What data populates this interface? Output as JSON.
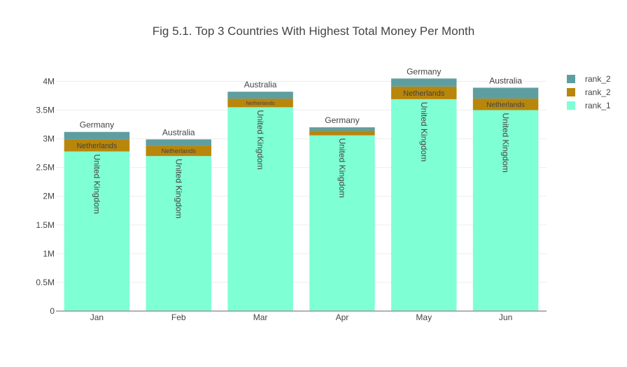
{
  "chart_data": {
    "type": "bar",
    "stacked": true,
    "title": "Fig 5.1. Top 3 Countries With Highest Total Money Per Month",
    "xlabel": "",
    "ylabel": "",
    "categories": [
      "Jan",
      "Feb",
      "Mar",
      "Apr",
      "May",
      "Jun"
    ],
    "ylim": [
      0,
      4200000
    ],
    "yticks": [
      0,
      500000,
      1000000,
      1500000,
      2000000,
      2500000,
      3000000,
      3500000,
      4000000
    ],
    "ytick_labels": [
      "0",
      "0.5M",
      "1M",
      "1.5M",
      "2M",
      "2.5M",
      "3M",
      "3.5M",
      "4M"
    ],
    "grid": true,
    "legend_position": "top-right",
    "series": [
      {
        "name": "rank_1",
        "color": "#7fffd4",
        "values": [
          2780000,
          2700000,
          3550000,
          3060000,
          3690000,
          3500000
        ],
        "labels": [
          "United Kingdom",
          "United Kingdom",
          "United Kingdom",
          "United Kingdom",
          "United Kingdom",
          "United Kingdom"
        ],
        "label_position": "inside"
      },
      {
        "name": "rank_2",
        "color": "#b8860b",
        "values": [
          210000,
          180000,
          150000,
          80000,
          220000,
          200000
        ],
        "labels": [
          "Netherlands",
          "Netherlands",
          "Netherlands",
          "",
          "Netherlands",
          "Netherlands"
        ],
        "label_position": "inside"
      },
      {
        "name": "rank_2",
        "color": "#5f9ea0",
        "values": [
          130000,
          110000,
          120000,
          60000,
          140000,
          190000
        ],
        "labels": [
          "Germany",
          "Australia",
          "Australia",
          "Germany",
          "Germany",
          "Australia"
        ],
        "label_position": "outside"
      }
    ],
    "legend_order": [
      2,
      1,
      0
    ]
  }
}
